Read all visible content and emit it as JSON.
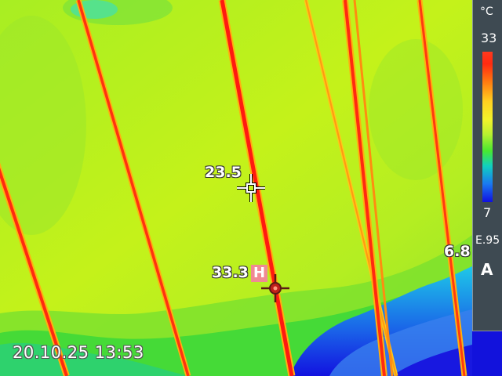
{
  "overlay": {
    "spot_value": "23.5",
    "hotspot_value": "33.3",
    "hotspot_badge": "H",
    "coldspot_value": "6.8",
    "timestamp": "20.10.25 13:53"
  },
  "scale": {
    "unit": "°C",
    "max": "33",
    "min": "7",
    "emissivity": "E.95",
    "mode": "A"
  },
  "icons": {
    "center_spot": "crosshair-icon",
    "hot_spot": "crosshair-icon",
    "cold_spot": "crosshair-icon"
  },
  "colors": {
    "background_green": "#b8f020",
    "hot_line": "#ff2a10",
    "cold_area": "#1a78f0",
    "scale_panel": "#3e4a52",
    "hot_badge": "#f08a93"
  }
}
